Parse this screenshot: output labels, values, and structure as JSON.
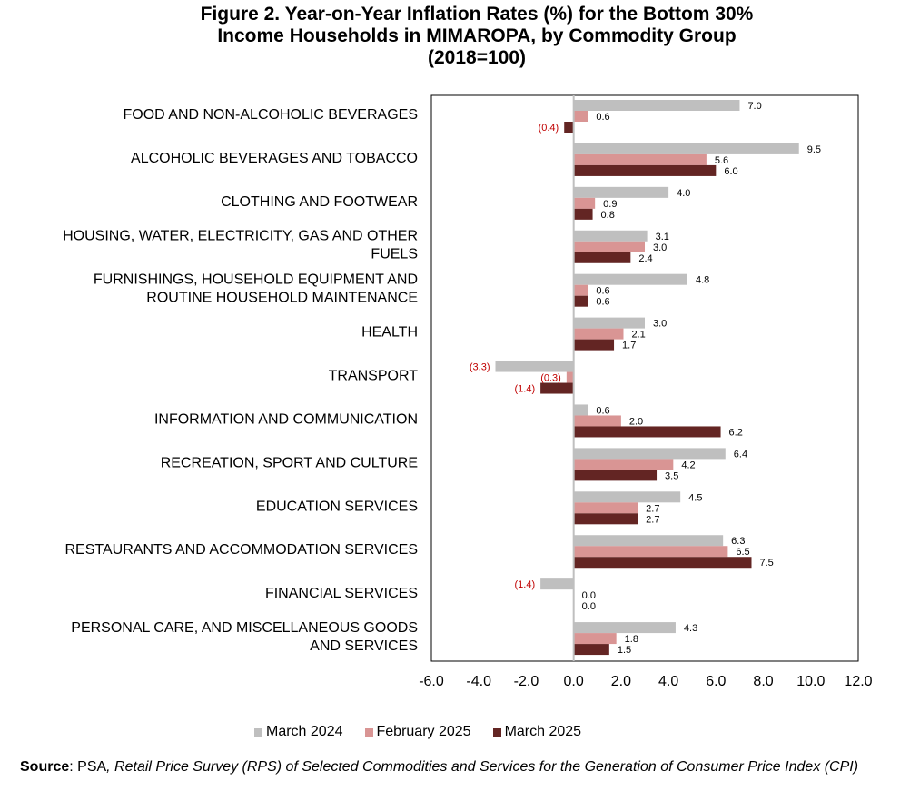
{
  "title_lines": [
    "Figure 2. Year-on-Year Inflation Rates (%) for the Bottom 30%",
    "Income Households in MIMAROPA, by Commodity Group",
    "(2018=100)"
  ],
  "source": {
    "label": "Source",
    "prefix": ": PSA",
    "detail": ", Retail Price Survey (RPS) of Selected Commodities and Services for the Generation of Consumer Price Index (CPI)"
  },
  "colors": {
    "march_2024": "#bfbfbf",
    "february_2025": "#d99594",
    "march_2025": "#632523",
    "negative_label": "#c00000",
    "axis": "#bfbfbf"
  },
  "chart_data": {
    "type": "bar",
    "orientation": "horizontal",
    "title": "Figure 2. Year-on-Year Inflation Rates (%) for the Bottom 30% Income Households in MIMAROPA, by Commodity Group (2018=100)",
    "categories": [
      "FOOD AND NON-ALCOHOLIC BEVERAGES",
      "ALCOHOLIC BEVERAGES  AND TOBACCO",
      "CLOTHING AND FOOTWEAR",
      "HOUSING, WATER, ELECTRICITY, GAS AND OTHER FUELS",
      "FURNISHINGS, HOUSEHOLD EQUIPMENT AND ROUTINE HOUSEHOLD MAINTENANCE",
      "HEALTH",
      "TRANSPORT",
      "INFORMATION AND COMMUNICATION",
      "RECREATION, SPORT AND CULTURE",
      "EDUCATION SERVICES",
      "RESTAURANTS AND ACCOMMODATION SERVICES",
      "FINANCIAL SERVICES",
      "PERSONAL CARE, AND MISCELLANEOUS GOODS AND SERVICES"
    ],
    "category_lines": [
      [
        "FOOD AND NON-ALCOHOLIC BEVERAGES"
      ],
      [
        "ALCOHOLIC BEVERAGES  AND TOBACCO"
      ],
      [
        "CLOTHING AND FOOTWEAR"
      ],
      [
        "HOUSING, WATER, ELECTRICITY, GAS AND OTHER",
        "FUELS"
      ],
      [
        "FURNISHINGS, HOUSEHOLD EQUIPMENT AND",
        "ROUTINE HOUSEHOLD MAINTENANCE"
      ],
      [
        "HEALTH"
      ],
      [
        "TRANSPORT"
      ],
      [
        "INFORMATION AND COMMUNICATION"
      ],
      [
        "RECREATION, SPORT AND CULTURE"
      ],
      [
        "EDUCATION SERVICES"
      ],
      [
        "RESTAURANTS AND ACCOMMODATION SERVICES"
      ],
      [
        "FINANCIAL SERVICES"
      ],
      [
        "PERSONAL CARE, AND MISCELLANEOUS GOODS",
        "AND SERVICES"
      ]
    ],
    "series": [
      {
        "name": "March 2024",
        "color_key": "march_2024",
        "values": [
          7.0,
          9.5,
          4.0,
          3.1,
          4.8,
          3.0,
          -3.3,
          0.6,
          6.4,
          4.5,
          6.3,
          -1.4,
          4.3
        ]
      },
      {
        "name": "February 2025",
        "color_key": "february_2025",
        "values": [
          0.6,
          5.6,
          0.9,
          3.0,
          0.6,
          2.1,
          -0.3,
          2.0,
          4.2,
          2.7,
          6.5,
          0.0,
          1.8
        ]
      },
      {
        "name": "March 2025",
        "color_key": "march_2025",
        "values": [
          -0.4,
          6.0,
          0.8,
          2.4,
          0.6,
          1.7,
          -1.4,
          6.2,
          3.5,
          2.7,
          7.5,
          0.0,
          1.5
        ]
      }
    ],
    "xlim": [
      -6.0,
      12.0
    ],
    "xticks": [
      -6.0,
      -4.0,
      -2.0,
      0.0,
      2.0,
      4.0,
      6.0,
      8.0,
      10.0,
      12.0
    ],
    "xtick_labels": [
      "-6.0",
      "-4.0",
      "-2.0",
      "0.0",
      "2.0",
      "4.0",
      "6.0",
      "8.0",
      "10.0",
      "12.0"
    ],
    "negative_format": "parentheses",
    "grid": false,
    "legend_position": "bottom"
  }
}
